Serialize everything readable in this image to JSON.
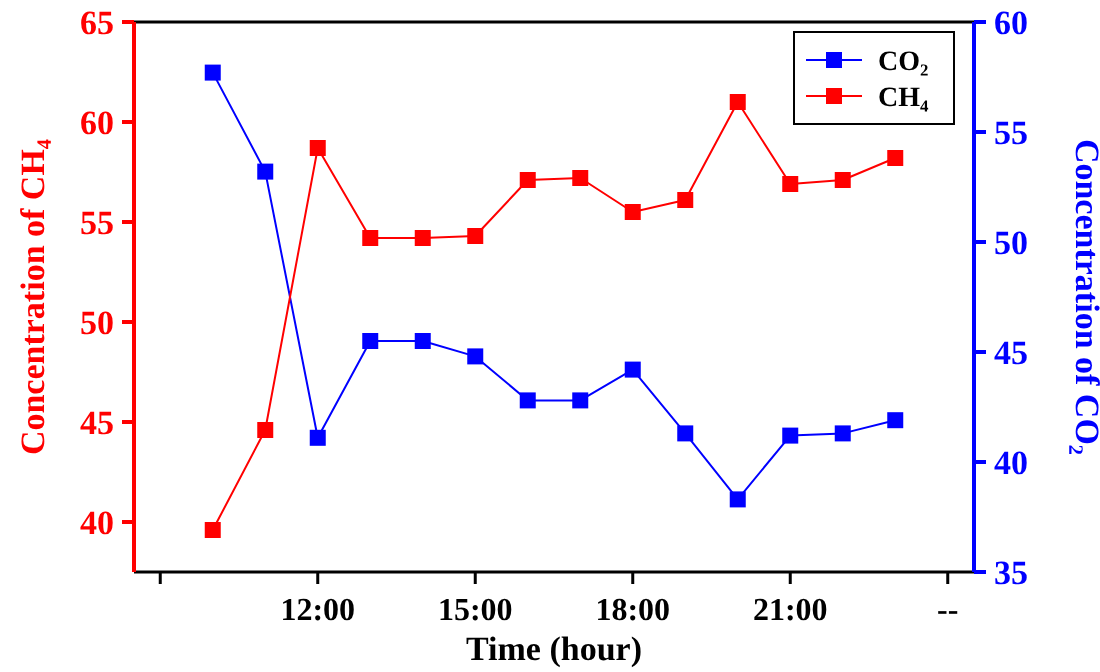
{
  "chart_data": {
    "type": "line",
    "xlabel": "Time (hour)",
    "ylabel": "Concentration of CH₄",
    "y2label": "Concentration of CO₂",
    "x": [
      10,
      11,
      12,
      13,
      14,
      15,
      16,
      17,
      18,
      19,
      20,
      21,
      22,
      23
    ],
    "series": [
      {
        "name": "CO₂",
        "color": "#0000ff",
        "axis": "y2",
        "values": [
          57.7,
          53.2,
          41.1,
          45.5,
          45.5,
          44.8,
          42.8,
          42.8,
          44.2,
          41.3,
          38.3,
          41.2,
          41.3,
          41.9
        ]
      },
      {
        "name": "CH₄",
        "color": "#ff0000",
        "values": [
          39.6,
          44.6,
          58.7,
          54.2,
          54.2,
          54.3,
          57.1,
          57.2,
          55.5,
          56.1,
          61.0,
          56.9,
          57.1,
          58.2
        ]
      }
    ],
    "xlim": [
      8.5,
      24.5
    ],
    "xticks": [
      {
        "value": 9,
        "label": null
      },
      {
        "value": 12,
        "label": "12:00"
      },
      {
        "value": 15,
        "label": "15:00"
      },
      {
        "value": 18,
        "label": "18:00"
      },
      {
        "value": 21,
        "label": "21:00"
      },
      {
        "value": 24,
        "label": "--"
      }
    ],
    "ylim": [
      37.5,
      65
    ],
    "yticks": [
      40,
      45,
      50,
      55,
      60,
      65
    ],
    "y2lim": [
      35,
      60
    ],
    "y2ticks": [
      35,
      40,
      45,
      50,
      55,
      60
    ],
    "marker": "square",
    "line_style": "solid",
    "legend": "top right",
    "grid": false
  }
}
